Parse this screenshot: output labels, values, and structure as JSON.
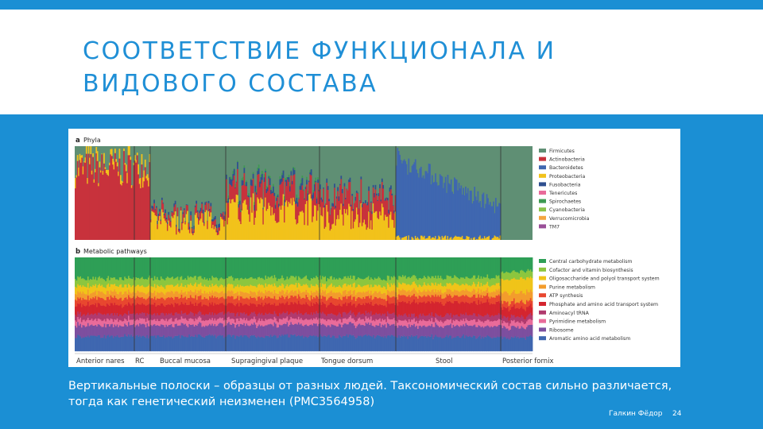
{
  "slide": {
    "title": "СООТВЕТСТВИЕ  ФУНКЦИОНАЛА  И\nВИДОВОГО  СОСТАВА",
    "caption": "Вертикальные полоски – образцы от разных людей. Таксономический состав сильно различается, тогда как генетический неизменен (PMC3564958)",
    "author": "Галкин Фёдор",
    "page_number": "24"
  },
  "colors": {
    "background": "#1b8fd4",
    "title": "#1f8fd6",
    "figure_bg": "#ffffff"
  },
  "figure": {
    "panel_a": {
      "letter": "a",
      "title": "Phyla"
    },
    "panel_b": {
      "letter": "b",
      "title": "Metabolic pathways"
    },
    "body_sites": [
      "Anterior nares",
      "RC",
      "Buccal mucosa",
      "Supragingival plaque",
      "Tongue dorsum",
      "Stool",
      "Posterior fornix"
    ],
    "phyla_legend": [
      {
        "label": "Firmicutes",
        "color": "#5f8f74"
      },
      {
        "label": "Actinobacteria",
        "color": "#c8323c"
      },
      {
        "label": "Bacteroidetes",
        "color": "#3f67b0"
      },
      {
        "label": "Proteobacteria",
        "color": "#f2c21b"
      },
      {
        "label": "Fusobacteria",
        "color": "#2f4f8f"
      },
      {
        "label": "Tenericutes",
        "color": "#e96b9a"
      },
      {
        "label": "Spirochaetes",
        "color": "#3e9a52"
      },
      {
        "label": "Cyanobacteria",
        "color": "#8bc34a"
      },
      {
        "label": "Verrucomicrobia",
        "color": "#f4a640"
      },
      {
        "label": "TM7",
        "color": "#9a4f98"
      }
    ],
    "pathway_legend": [
      {
        "label": "Central carbohydrate metabolism",
        "color": "#2e9f56"
      },
      {
        "label": "Cofactor and vitamin biosynthesis",
        "color": "#8cc63e"
      },
      {
        "label": "Oligosaccharide and polyol transport system",
        "color": "#f0c419"
      },
      {
        "label": "Purine metabolism",
        "color": "#f39c2c"
      },
      {
        "label": "ATP synthesis",
        "color": "#e8472f"
      },
      {
        "label": "Phosphate and amino acid transport system",
        "color": "#d4252f"
      },
      {
        "label": "Aminoacyl tRNA",
        "color": "#b03a6e"
      },
      {
        "label": "Pyrimidine metabolism",
        "color": "#e96b9a"
      },
      {
        "label": "Ribosome",
        "color": "#7d4f9f"
      },
      {
        "label": "Aromatic amino acid metabolism",
        "color": "#3f67b0"
      }
    ]
  }
}
